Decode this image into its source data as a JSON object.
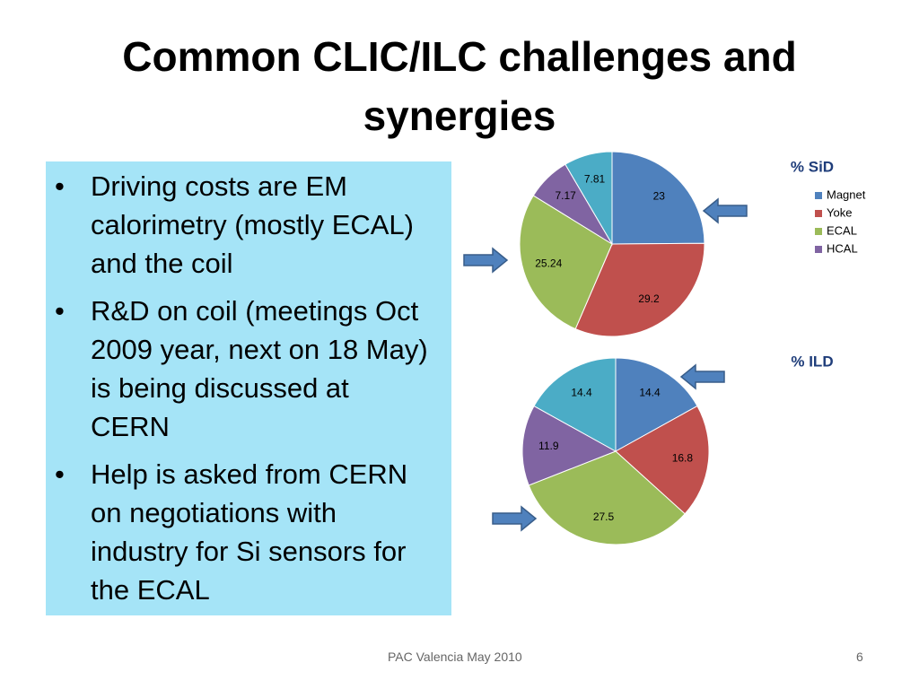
{
  "slide": {
    "title": "Common CLIC/ILC challenges and synergies",
    "bullets": [
      "Driving costs are EM calorimetry (mostly ECAL) and the coil",
      " R&D on coil (meetings Oct 2009 year, next on 18 May) is being discussed at CERN",
      " Help is asked from CERN on negotiations with industry for Si sensors for the ECAL"
    ],
    "footer": "PAC Valencia May 2010",
    "page_number": 6
  },
  "chart_data": [
    {
      "type": "pie",
      "title": "% SiD",
      "categories": [
        "Magnet",
        "Yoke",
        "ECAL",
        "HCAL",
        null
      ],
      "values": [
        23,
        29.2,
        25.24,
        7.17,
        7.81
      ],
      "colors": [
        "#4f81bd",
        "#c0504d",
        "#9bbb59",
        "#8064a2",
        "#4bacc6"
      ],
      "legend": "right"
    },
    {
      "type": "pie",
      "title": "% ILD",
      "values": [
        14.4,
        16.8,
        27.5,
        11.9,
        14.4
      ],
      "colors": [
        "#4f81bd",
        "#c0504d",
        "#9bbb59",
        "#8064a2",
        "#4bacc6"
      ]
    }
  ]
}
